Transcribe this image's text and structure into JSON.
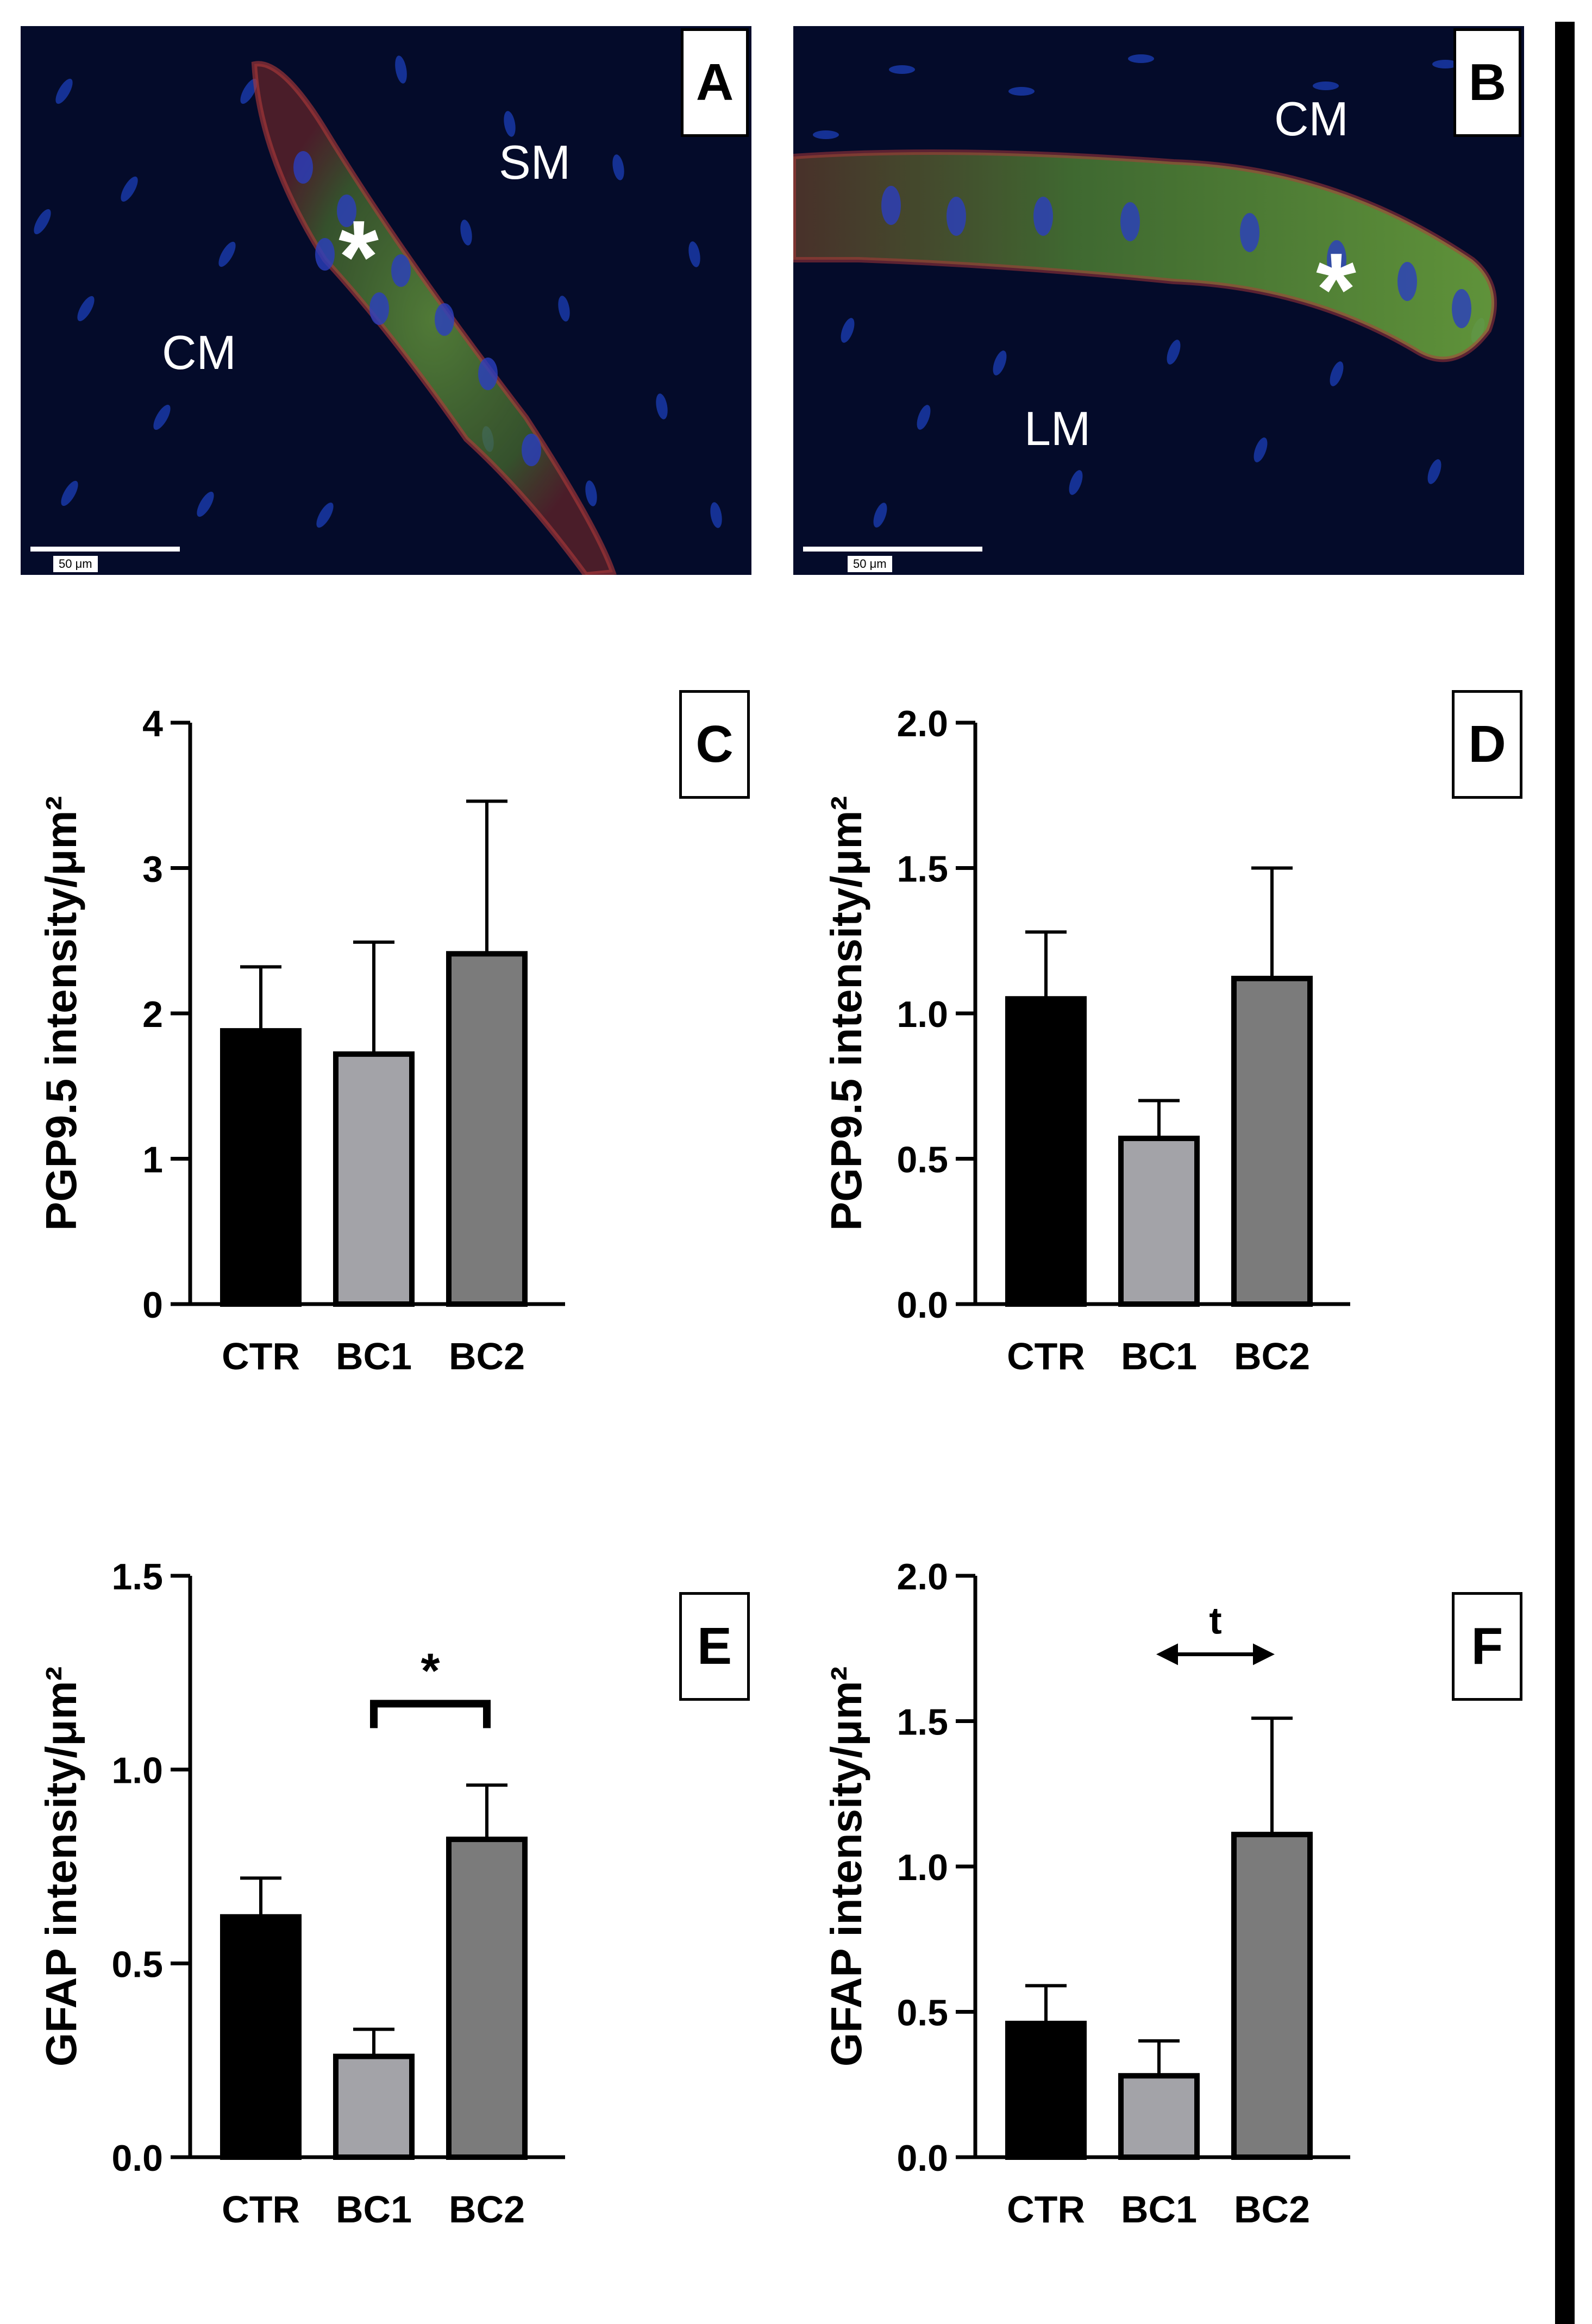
{
  "panels": {
    "A": {
      "letter": "A",
      "regions": [
        "CM",
        "SM"
      ],
      "marker": "*",
      "scale_label": "50 μm"
    },
    "B": {
      "letter": "B",
      "regions": [
        "CM",
        "LM"
      ],
      "marker": "*",
      "scale_label": "50 μm"
    },
    "C": {
      "letter": "C"
    },
    "D": {
      "letter": "D"
    },
    "E": {
      "letter": "E",
      "significance": "*"
    },
    "F": {
      "letter": "F",
      "trend": "t"
    }
  },
  "colors": {
    "CTR": "#000000",
    "BC1": "#a3a3a8",
    "BC2": "#7b7b7b",
    "tissue_bg": "#040b2a"
  },
  "chart_data": [
    {
      "panel": "C",
      "type": "bar",
      "categories": [
        "CTR",
        "BC1",
        "BC2"
      ],
      "values": [
        1.88,
        1.72,
        2.41
      ],
      "errors": [
        0.44,
        0.77,
        1.05
      ],
      "ylabel": "PGP9.5 intensity/μm²",
      "ylim": [
        0,
        4
      ],
      "yticks": [
        0,
        1,
        2,
        3,
        4
      ],
      "ytick_labels": [
        "0",
        "1",
        "2",
        "3",
        "4"
      ]
    },
    {
      "panel": "D",
      "type": "bar",
      "categories": [
        "CTR",
        "BC1",
        "BC2"
      ],
      "values": [
        1.05,
        0.57,
        1.12
      ],
      "errors": [
        0.23,
        0.13,
        0.38
      ],
      "ylabel": "PGP9.5 intensity/μm²",
      "ylim": [
        0,
        2
      ],
      "yticks": [
        0,
        0.5,
        1,
        1.5,
        2
      ],
      "ytick_labels": [
        "0.0",
        "0.5",
        "1.0",
        "1.5",
        "2.0"
      ]
    },
    {
      "panel": "E",
      "type": "bar",
      "categories": [
        "CTR",
        "BC1",
        "BC2"
      ],
      "values": [
        0.62,
        0.26,
        0.82
      ],
      "errors": [
        0.1,
        0.07,
        0.14
      ],
      "ylabel": "GFAP intensity/μm²",
      "ylim": [
        0,
        1.5
      ],
      "yticks": [
        0,
        0.5,
        1,
        1.5
      ],
      "ytick_labels": [
        "0.0",
        "0.5",
        "1.0",
        "1.5"
      ],
      "bracket": {
        "between": [
          "BC1",
          "BC2"
        ],
        "y": 1.17,
        "label": "*"
      }
    },
    {
      "panel": "F",
      "type": "bar",
      "categories": [
        "CTR",
        "BC1",
        "BC2"
      ],
      "values": [
        0.46,
        0.28,
        1.11
      ],
      "errors": [
        0.13,
        0.12,
        0.4
      ],
      "ylabel": "GFAP intensity/μm²",
      "ylim": [
        0,
        2
      ],
      "yticks": [
        0,
        0.5,
        1,
        1.5,
        2
      ],
      "ytick_labels": [
        "0.0",
        "0.5",
        "1.0",
        "1.5",
        "2.0"
      ],
      "arrow": {
        "between": [
          "BC1",
          "BC2"
        ],
        "y": 1.73,
        "label": "t"
      }
    }
  ]
}
